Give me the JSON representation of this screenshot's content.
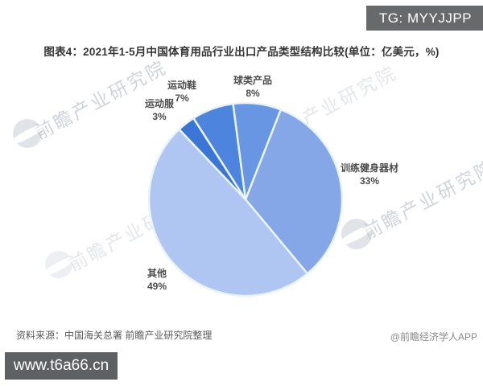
{
  "header": {
    "badge_top_right": "TG: MYYJJPP",
    "title": "图表4：2021年1-5月中国体育用品行业出口产品类型结构比较(单位：亿美元，%)"
  },
  "chart_data": {
    "type": "pie",
    "title": "2021年1-5月中国体育用品行业出口产品类型结构比较",
    "unit_note": "单位：亿美元，%",
    "direction": "clockwise",
    "start_angle_deg": 21.4,
    "gap_color": "#e9f3fa",
    "legend_position": "none",
    "slices": [
      {
        "label": "训练健身器材",
        "value": 33,
        "pct_label": "33%",
        "color": "#86a7e7"
      },
      {
        "label": "其他",
        "value": 49,
        "pct_label": "49%",
        "color": "#aec6f1"
      },
      {
        "label": "运动服",
        "value": 3,
        "pct_label": "3%",
        "color": "#3b76d6"
      },
      {
        "label": "运动鞋",
        "value": 7,
        "pct_label": "7%",
        "color": "#4d85de"
      },
      {
        "label": "球类产品",
        "value": 8,
        "pct_label": "8%",
        "color": "#6996e2"
      }
    ]
  },
  "watermark": {
    "text": "前瞻产业研究院"
  },
  "footer": {
    "source": "资料来源：中国海关总署 前瞻产业研究院整理",
    "credit": "@前瞻经济学人APP",
    "badge_bottom_left": "www.t6a66.cn"
  }
}
